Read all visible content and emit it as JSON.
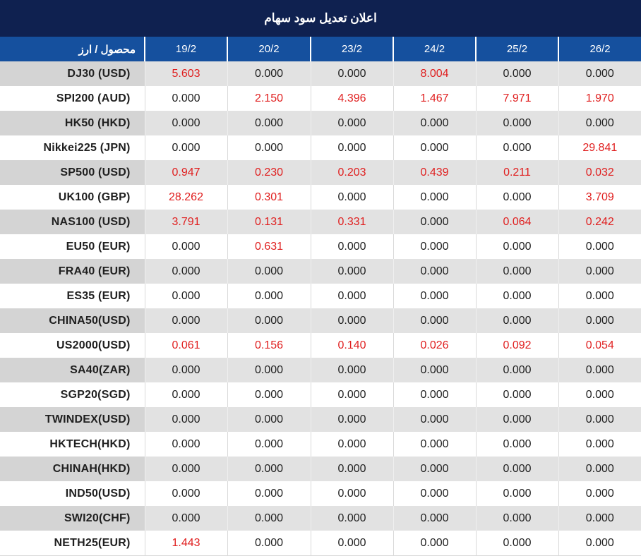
{
  "title": "اعلان تعديل سود سهام",
  "colors": {
    "title_bg": "#0f2150",
    "header_bg": "#15509e",
    "header_text": "#ffffff",
    "row_stripe_bg": "#e2e2e2",
    "row_stripe_label_bg": "#d4d4d4",
    "separator": "#d9d9d9",
    "value_text": "#1f1f1f",
    "highlight_red": "#e02020"
  },
  "table": {
    "label_header": "محصول / ارز",
    "date_headers": [
      "19/2",
      "20/2",
      "23/2",
      "24/2",
      "25/2",
      "26/2"
    ],
    "zero_value": "0.000",
    "rows": [
      {
        "label": "DJ30 (USD)",
        "values": [
          "5.603",
          "0.000",
          "0.000",
          "8.004",
          "0.000",
          "0.000"
        ]
      },
      {
        "label": "SPI200 (AUD)",
        "values": [
          "0.000",
          "2.150",
          "4.396",
          "1.467",
          "7.971",
          "1.970"
        ]
      },
      {
        "label": "HK50 (HKD)",
        "values": [
          "0.000",
          "0.000",
          "0.000",
          "0.000",
          "0.000",
          "0.000"
        ]
      },
      {
        "label": "Nikkei225 (JPN)",
        "values": [
          "0.000",
          "0.000",
          "0.000",
          "0.000",
          "0.000",
          "29.841"
        ]
      },
      {
        "label": "SP500 (USD)",
        "values": [
          "0.947",
          "0.230",
          "0.203",
          "0.439",
          "0.211",
          "0.032"
        ]
      },
      {
        "label": "UK100 (GBP)",
        "values": [
          "28.262",
          "0.301",
          "0.000",
          "0.000",
          "0.000",
          "3.709"
        ]
      },
      {
        "label": "NAS100 (USD)",
        "values": [
          "3.791",
          "0.131",
          "0.331",
          "0.000",
          "0.064",
          "0.242"
        ]
      },
      {
        "label": "EU50 (EUR)",
        "values": [
          "0.000",
          "0.631",
          "0.000",
          "0.000",
          "0.000",
          "0.000"
        ]
      },
      {
        "label": "FRA40 (EUR)",
        "values": [
          "0.000",
          "0.000",
          "0.000",
          "0.000",
          "0.000",
          "0.000"
        ]
      },
      {
        "label": "ES35 (EUR)",
        "values": [
          "0.000",
          "0.000",
          "0.000",
          "0.000",
          "0.000",
          "0.000"
        ]
      },
      {
        "label": "CHINA50(USD)",
        "values": [
          "0.000",
          "0.000",
          "0.000",
          "0.000",
          "0.000",
          "0.000"
        ]
      },
      {
        "label": "US2000(USD)",
        "values": [
          "0.061",
          "0.156",
          "0.140",
          "0.026",
          "0.092",
          "0.054"
        ]
      },
      {
        "label": "SA40(ZAR)",
        "values": [
          "0.000",
          "0.000",
          "0.000",
          "0.000",
          "0.000",
          "0.000"
        ]
      },
      {
        "label": "SGP20(SGD)",
        "values": [
          "0.000",
          "0.000",
          "0.000",
          "0.000",
          "0.000",
          "0.000"
        ]
      },
      {
        "label": "TWINDEX(USD)",
        "values": [
          "0.000",
          "0.000",
          "0.000",
          "0.000",
          "0.000",
          "0.000"
        ]
      },
      {
        "label": "HKTECH(HKD)",
        "values": [
          "0.000",
          "0.000",
          "0.000",
          "0.000",
          "0.000",
          "0.000"
        ]
      },
      {
        "label": "CHINAH(HKD)",
        "values": [
          "0.000",
          "0.000",
          "0.000",
          "0.000",
          "0.000",
          "0.000"
        ]
      },
      {
        "label": "IND50(USD)",
        "values": [
          "0.000",
          "0.000",
          "0.000",
          "0.000",
          "0.000",
          "0.000"
        ]
      },
      {
        "label": "SWI20(CHF)",
        "values": [
          "0.000",
          "0.000",
          "0.000",
          "0.000",
          "0.000",
          "0.000"
        ]
      },
      {
        "label": "NETH25(EUR)",
        "values": [
          "1.443",
          "0.000",
          "0.000",
          "0.000",
          "0.000",
          "0.000"
        ]
      }
    ]
  },
  "chart_data": {
    "type": "table",
    "title": "اعلان تعديل سود سهام",
    "columns": [
      "محصول / ارز",
      "19/2",
      "20/2",
      "23/2",
      "24/2",
      "25/2",
      "26/2"
    ],
    "rows": [
      [
        "DJ30 (USD)",
        5.603,
        0.0,
        0.0,
        8.004,
        0.0,
        0.0
      ],
      [
        "SPI200 (AUD)",
        0.0,
        2.15,
        4.396,
        1.467,
        7.971,
        1.97
      ],
      [
        "HK50 (HKD)",
        0.0,
        0.0,
        0.0,
        0.0,
        0.0,
        0.0
      ],
      [
        "Nikkei225 (JPN)",
        0.0,
        0.0,
        0.0,
        0.0,
        0.0,
        29.841
      ],
      [
        "SP500 (USD)",
        0.947,
        0.23,
        0.203,
        0.439,
        0.211,
        0.032
      ],
      [
        "UK100 (GBP)",
        28.262,
        0.301,
        0.0,
        0.0,
        0.0,
        3.709
      ],
      [
        "NAS100 (USD)",
        3.791,
        0.131,
        0.331,
        0.0,
        0.064,
        0.242
      ],
      [
        "EU50 (EUR)",
        0.0,
        0.631,
        0.0,
        0.0,
        0.0,
        0.0
      ],
      [
        "FRA40 (EUR)",
        0.0,
        0.0,
        0.0,
        0.0,
        0.0,
        0.0
      ],
      [
        "ES35 (EUR)",
        0.0,
        0.0,
        0.0,
        0.0,
        0.0,
        0.0
      ],
      [
        "CHINA50(USD)",
        0.0,
        0.0,
        0.0,
        0.0,
        0.0,
        0.0
      ],
      [
        "US2000(USD)",
        0.061,
        0.156,
        0.14,
        0.026,
        0.092,
        0.054
      ],
      [
        "SA40(ZAR)",
        0.0,
        0.0,
        0.0,
        0.0,
        0.0,
        0.0
      ],
      [
        "SGP20(SGD)",
        0.0,
        0.0,
        0.0,
        0.0,
        0.0,
        0.0
      ],
      [
        "TWINDEX(USD)",
        0.0,
        0.0,
        0.0,
        0.0,
        0.0,
        0.0
      ],
      [
        "HKTECH(HKD)",
        0.0,
        0.0,
        0.0,
        0.0,
        0.0,
        0.0
      ],
      [
        "CHINAH(HKD)",
        0.0,
        0.0,
        0.0,
        0.0,
        0.0,
        0.0
      ],
      [
        "IND50(USD)",
        0.0,
        0.0,
        0.0,
        0.0,
        0.0,
        0.0
      ],
      [
        "SWI20(CHF)",
        0.0,
        0.0,
        0.0,
        0.0,
        0.0,
        0.0
      ],
      [
        "NETH25(EUR)",
        1.443,
        0.0,
        0.0,
        0.0,
        0.0,
        0.0
      ]
    ],
    "notes": "Non-zero values rendered in red (#e02020); zero values in near-black. Rows alternate gray/white striping starting gray."
  }
}
